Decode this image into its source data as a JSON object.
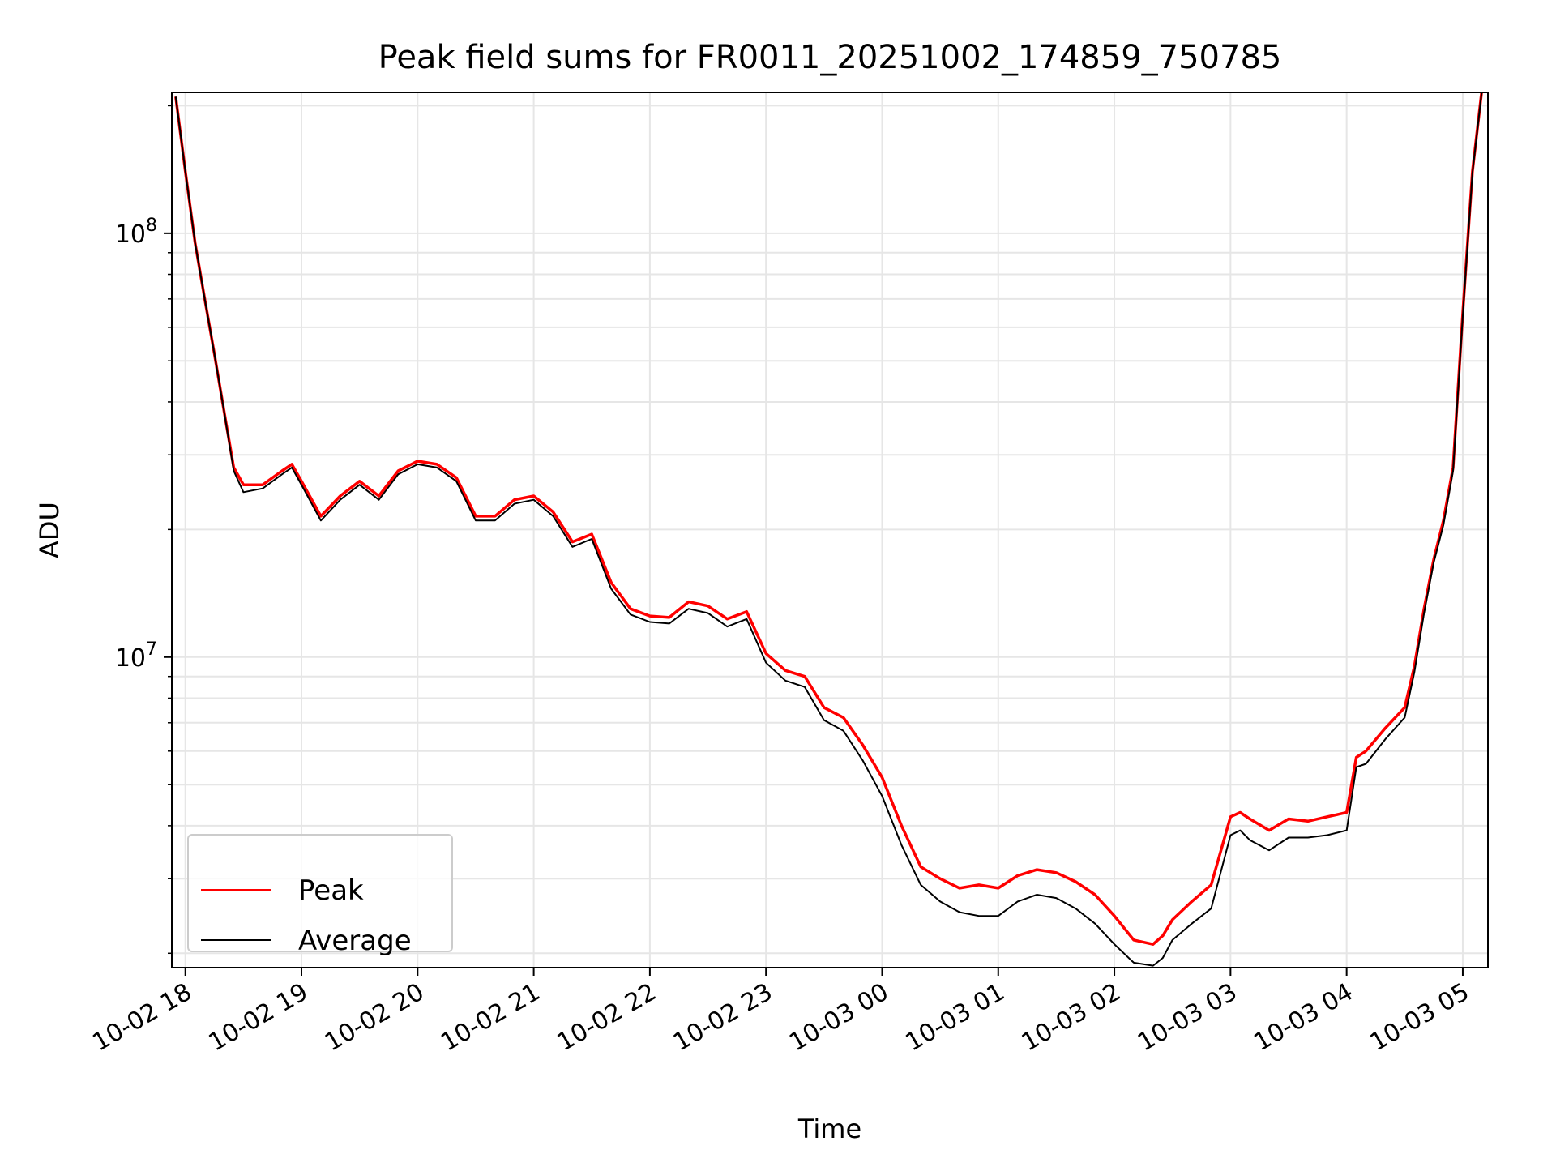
{
  "chart_data": {
    "type": "line",
    "title": "Peak field sums for FR0011_20251002_174859_750785",
    "xlabel": "Time",
    "ylabel": "ADU",
    "yscale": "log",
    "ylim": [
      1850000,
      215000000
    ],
    "xlim": [
      "2025-10-02 17:53",
      "2025-10-03 05:13"
    ],
    "x_ticks": [
      "10-02 18",
      "10-02 19",
      "10-02 20",
      "10-02 21",
      "10-02 22",
      "10-02 23",
      "10-03 00",
      "10-03 01",
      "10-03 02",
      "10-03 03",
      "10-03 04",
      "10-03 05"
    ],
    "y_ticks": [
      {
        "value": 10000000,
        "base": "10",
        "exp": "7"
      },
      {
        "value": 100000000,
        "base": "10",
        "exp": "8"
      }
    ],
    "grid": true,
    "legend_position": "lower-left",
    "colors": {
      "peak": "#ff0000",
      "average": "#000000",
      "grid": "#e6e6e6"
    },
    "series": [
      {
        "name": "Peak",
        "color": "#ff0000",
        "x": [
          "2025-10-02 17:55",
          "2025-10-02 18:00",
          "2025-10-02 18:05",
          "2025-10-02 18:10",
          "2025-10-02 18:15",
          "2025-10-02 18:20",
          "2025-10-02 18:25",
          "2025-10-02 18:30",
          "2025-10-02 18:40",
          "2025-10-02 18:50",
          "2025-10-02 18:55",
          "2025-10-02 19:00",
          "2025-10-02 19:10",
          "2025-10-02 19:20",
          "2025-10-02 19:30",
          "2025-10-02 19:40",
          "2025-10-02 19:50",
          "2025-10-02 20:00",
          "2025-10-02 20:10",
          "2025-10-02 20:20",
          "2025-10-02 20:30",
          "2025-10-02 20:40",
          "2025-10-02 20:50",
          "2025-10-02 21:00",
          "2025-10-02 21:10",
          "2025-10-02 21:20",
          "2025-10-02 21:30",
          "2025-10-02 21:40",
          "2025-10-02 21:50",
          "2025-10-02 22:00",
          "2025-10-02 22:10",
          "2025-10-02 22:20",
          "2025-10-02 22:30",
          "2025-10-02 22:40",
          "2025-10-02 22:50",
          "2025-10-02 23:00",
          "2025-10-02 23:10",
          "2025-10-02 23:20",
          "2025-10-02 23:30",
          "2025-10-02 23:40",
          "2025-10-02 23:50",
          "2025-10-03 00:00",
          "2025-10-03 00:10",
          "2025-10-03 00:20",
          "2025-10-03 00:30",
          "2025-10-03 00:40",
          "2025-10-03 00:50",
          "2025-10-03 01:00",
          "2025-10-03 01:10",
          "2025-10-03 01:20",
          "2025-10-03 01:30",
          "2025-10-03 01:40",
          "2025-10-03 01:50",
          "2025-10-03 02:00",
          "2025-10-03 02:10",
          "2025-10-03 02:20",
          "2025-10-03 02:25",
          "2025-10-03 02:30",
          "2025-10-03 02:40",
          "2025-10-03 02:50",
          "2025-10-03 03:00",
          "2025-10-03 03:05",
          "2025-10-03 03:10",
          "2025-10-03 03:20",
          "2025-10-03 03:30",
          "2025-10-03 03:40",
          "2025-10-03 03:50",
          "2025-10-03 04:00",
          "2025-10-03 04:05",
          "2025-10-03 04:10",
          "2025-10-03 04:20",
          "2025-10-03 04:30",
          "2025-10-03 04:35",
          "2025-10-03 04:40",
          "2025-10-03 04:45",
          "2025-10-03 04:50",
          "2025-10-03 04:55",
          "2025-10-03 05:00",
          "2025-10-03 05:05",
          "2025-10-03 05:10"
        ],
        "values": [
          210000000,
          140000000,
          95000000,
          70000000,
          52000000,
          38000000,
          28000000,
          25500000,
          25500000,
          27500000,
          28500000,
          26000000,
          21500000,
          24000000,
          26000000,
          24000000,
          27500000,
          29000000,
          28500000,
          26500000,
          21500000,
          21500000,
          23500000,
          24000000,
          22000000,
          18700000,
          19500000,
          15000000,
          13000000,
          12500000,
          12400000,
          13500000,
          13200000,
          12300000,
          12800000,
          10200000,
          9300000,
          9000000,
          7600000,
          7200000,
          6200000,
          5200000,
          4000000,
          3200000,
          3000000,
          2850000,
          2900000,
          2850000,
          3050000,
          3150000,
          3100000,
          2950000,
          2750000,
          2450000,
          2150000,
          2100000,
          2200000,
          2400000,
          2650000,
          2900000,
          4200000,
          4300000,
          4150000,
          3900000,
          4150000,
          4100000,
          4200000,
          4300000,
          5800000,
          6000000,
          6800000,
          7600000,
          9500000,
          13000000,
          17000000,
          21000000,
          28000000,
          65000000,
          140000000,
          220000000
        ]
      },
      {
        "name": "Average",
        "color": "#000000",
        "x": [
          "2025-10-02 17:55",
          "2025-10-02 18:00",
          "2025-10-02 18:05",
          "2025-10-02 18:10",
          "2025-10-02 18:15",
          "2025-10-02 18:20",
          "2025-10-02 18:25",
          "2025-10-02 18:30",
          "2025-10-02 18:40",
          "2025-10-02 18:50",
          "2025-10-02 18:55",
          "2025-10-02 19:00",
          "2025-10-02 19:10",
          "2025-10-02 19:20",
          "2025-10-02 19:30",
          "2025-10-02 19:40",
          "2025-10-02 19:50",
          "2025-10-02 20:00",
          "2025-10-02 20:10",
          "2025-10-02 20:20",
          "2025-10-02 20:30",
          "2025-10-02 20:40",
          "2025-10-02 20:50",
          "2025-10-02 21:00",
          "2025-10-02 21:10",
          "2025-10-02 21:20",
          "2025-10-02 21:30",
          "2025-10-02 21:40",
          "2025-10-02 21:50",
          "2025-10-02 22:00",
          "2025-10-02 22:10",
          "2025-10-02 22:20",
          "2025-10-02 22:30",
          "2025-10-02 22:40",
          "2025-10-02 22:50",
          "2025-10-02 23:00",
          "2025-10-02 23:10",
          "2025-10-02 23:20",
          "2025-10-02 23:30",
          "2025-10-02 23:40",
          "2025-10-02 23:50",
          "2025-10-03 00:00",
          "2025-10-03 00:10",
          "2025-10-03 00:20",
          "2025-10-03 00:30",
          "2025-10-03 00:40",
          "2025-10-03 00:50",
          "2025-10-03 01:00",
          "2025-10-03 01:10",
          "2025-10-03 01:20",
          "2025-10-03 01:30",
          "2025-10-03 01:40",
          "2025-10-03 01:50",
          "2025-10-03 02:00",
          "2025-10-03 02:10",
          "2025-10-03 02:20",
          "2025-10-03 02:25",
          "2025-10-03 02:30",
          "2025-10-03 02:40",
          "2025-10-03 02:50",
          "2025-10-03 03:00",
          "2025-10-03 03:05",
          "2025-10-03 03:10",
          "2025-10-03 03:20",
          "2025-10-03 03:30",
          "2025-10-03 03:40",
          "2025-10-03 03:50",
          "2025-10-03 04:00",
          "2025-10-03 04:05",
          "2025-10-03 04:10",
          "2025-10-03 04:20",
          "2025-10-03 04:30",
          "2025-10-03 04:35",
          "2025-10-03 04:40",
          "2025-10-03 04:45",
          "2025-10-03 04:50",
          "2025-10-03 04:55",
          "2025-10-03 05:00",
          "2025-10-03 05:05",
          "2025-10-03 05:10"
        ],
        "values": [
          210000000,
          140000000,
          95000000,
          70000000,
          52000000,
          38000000,
          27500000,
          24500000,
          25000000,
          27000000,
          28000000,
          25500000,
          21000000,
          23500000,
          25500000,
          23500000,
          27000000,
          28500000,
          28000000,
          26000000,
          21000000,
          21000000,
          23000000,
          23500000,
          21500000,
          18200000,
          19000000,
          14500000,
          12600000,
          12100000,
          12000000,
          13000000,
          12700000,
          11800000,
          12300000,
          9700000,
          8800000,
          8500000,
          7100000,
          6700000,
          5700000,
          4700000,
          3600000,
          2900000,
          2650000,
          2500000,
          2450000,
          2450000,
          2650000,
          2750000,
          2700000,
          2550000,
          2350000,
          2100000,
          1900000,
          1870000,
          1950000,
          2150000,
          2350000,
          2550000,
          3800000,
          3900000,
          3700000,
          3500000,
          3750000,
          3750000,
          3800000,
          3900000,
          5500000,
          5600000,
          6400000,
          7200000,
          9200000,
          12700000,
          16700000,
          20500000,
          27500000,
          64000000,
          139000000,
          219000000
        ]
      }
    ]
  }
}
